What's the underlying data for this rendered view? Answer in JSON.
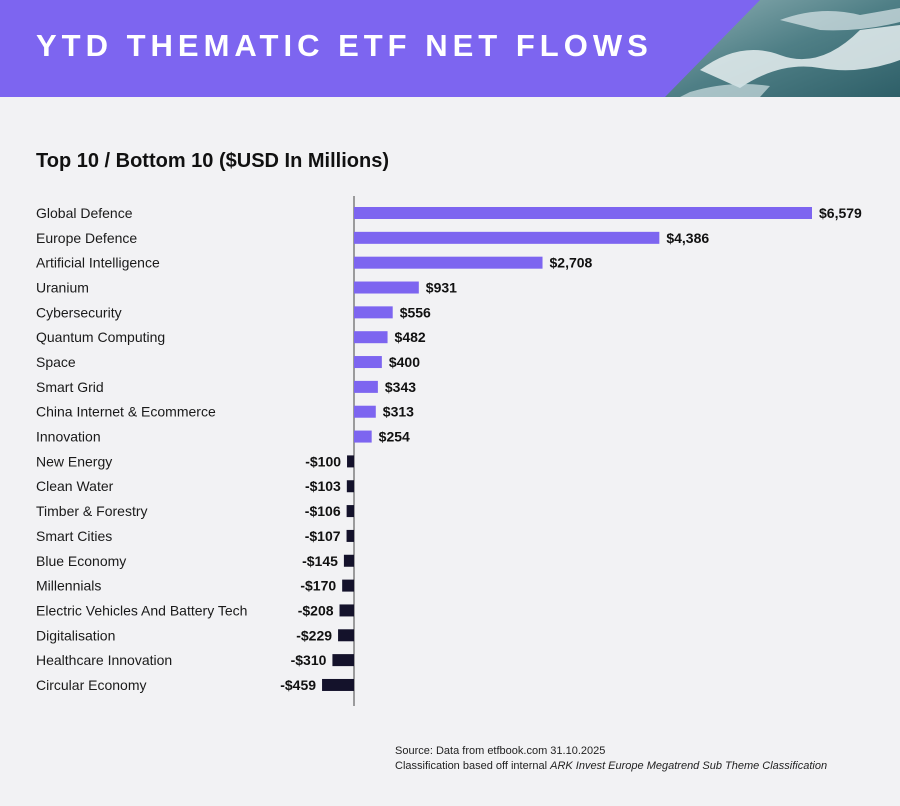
{
  "header": {
    "title": "YTD THEMATIC ETF NET FLOWS"
  },
  "chart_data": {
    "type": "bar",
    "orientation": "horizontal",
    "title": "Top 10 / Bottom 10 ($USD In Millions)",
    "categories": [
      "Global Defence",
      "Europe Defence",
      "Artificial Intelligence",
      "Uranium",
      "Cybersecurity",
      "Quantum Computing",
      "Space",
      "Smart Grid",
      "China Internet & Ecommerce",
      "Innovation",
      "New Energy",
      "Clean Water",
      "Timber & Forestry",
      "Smart Cities",
      "Blue Economy",
      "Millennials",
      "Electric Vehicles And Battery Tech",
      "Digitalisation",
      "Healthcare Innovation",
      "Circular Economy"
    ],
    "values": [
      6579,
      4386,
      2708,
      931,
      556,
      482,
      400,
      343,
      313,
      254,
      -100,
      -103,
      -106,
      -107,
      -145,
      -170,
      -208,
      -229,
      -310,
      -459
    ],
    "labels": [
      "$6,579",
      "$4,386",
      "$2,708",
      "$931",
      "$556",
      "$482",
      "$400",
      "$343",
      "$313",
      "$254",
      "-$100",
      "-$103",
      "-$106",
      "-$107",
      "-$145",
      "-$170",
      "-$208",
      "-$229",
      "-$310",
      "-$459"
    ],
    "positive_color": "#7d65f0",
    "negative_color": "#14122b",
    "xlim": [
      -459,
      6579
    ]
  },
  "footer": {
    "source_line": "Source: Data from etfbook.com 31.10.2025",
    "classification_prefix": "Classification based off internal ",
    "classification_emphasis": "ARK Invest Europe Megatrend Sub Theme Classification"
  }
}
